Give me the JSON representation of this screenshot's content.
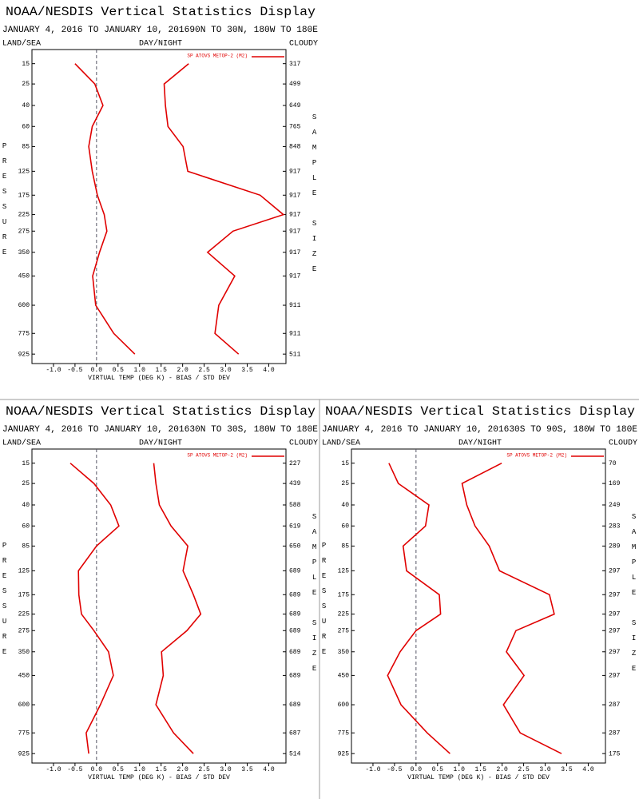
{
  "chart_data": [
    {
      "type": "line",
      "title": "NOAA/NESDIS Vertical Statistics Display",
      "subtitle": "JANUARY 4, 2016 TO JANUARY 10, 201690N TO 30N, 180W TO 180E",
      "top_labels": [
        "LAND/SEA",
        "DAY/NIGHT",
        "CLOUDY"
      ],
      "xlabel": "VIRTUAL TEMP (DEG K) - BIAS / STD DEV",
      "ylabel": "PRESSURE",
      "y2label": "SAMPLE SIZE",
      "xlim": [
        -1.5,
        4.4
      ],
      "xticks": [
        {
          "value": -1.0,
          "label": "-1.0"
        },
        {
          "value": -0.5,
          "label": "-0.5"
        },
        {
          "value": 0,
          "label": "0.0"
        },
        {
          "value": 0.5,
          "label": "0.5"
        },
        {
          "value": 1,
          "label": "1.0"
        },
        {
          "value": 1.5,
          "label": "1.5"
        },
        {
          "value": 2,
          "label": "2.0"
        },
        {
          "value": 2.5,
          "label": "2.5"
        },
        {
          "value": 3,
          "label": "3.0"
        },
        {
          "value": 3.5,
          "label": "3.5"
        },
        {
          "value": 4,
          "label": "4.0"
        }
      ],
      "ylim": [
        10,
        1000
      ],
      "y_inverted": true,
      "yscale": "power",
      "yscale_exponent": 0.286,
      "y": [
        15,
        25,
        40,
        60,
        85,
        125,
        175,
        225,
        275,
        350,
        450,
        600,
        775,
        925
      ],
      "yticks": [
        15,
        25,
        40,
        60,
        85,
        125,
        175,
        225,
        275,
        350,
        450,
        600,
        775,
        925
      ],
      "sample_sizes": [
        317,
        499,
        649,
        765,
        848,
        917,
        917,
        917,
        917,
        917,
        917,
        911,
        911,
        511
      ],
      "reference_line": 0,
      "series": [
        {
          "name": "SP ATOVS METOP-2 (M2)",
          "color": "#e00000",
          "values": [
            -0.5,
            -0.04,
            0.15,
            -0.1,
            -0.18,
            -0.1,
            0.02,
            0.18,
            0.24,
            0.07,
            -0.09,
            -0.02,
            0.4,
            0.89
          ]
        },
        {
          "color": "#e00000",
          "values": [
            2.14,
            1.57,
            1.6,
            1.66,
            2.01,
            2.12,
            3.8,
            4.34,
            3.17,
            2.58,
            3.21,
            2.84,
            2.75,
            3.3
          ]
        }
      ]
    },
    {
      "type": "line",
      "title": "NOAA/NESDIS Vertical Statistics Display",
      "subtitle": "JANUARY 4, 2016 TO JANUARY 10, 201630N TO 30S, 180W TO 180E",
      "top_labels": [
        "LAND/SEA",
        "DAY/NIGHT",
        "CLOUDY"
      ],
      "xlabel": "VIRTUAL TEMP (DEG K) - BIAS / STD DEV",
      "ylabel": "PRESSURE",
      "y2label": "SAMPLE SIZE",
      "xlim": [
        -1.5,
        4.4
      ],
      "xticks": [
        {
          "value": -1.0,
          "label": "-1.0"
        },
        {
          "value": -0.5,
          "label": "-0.5"
        },
        {
          "value": 0,
          "label": "0.0"
        },
        {
          "value": 0.5,
          "label": "0.5"
        },
        {
          "value": 1,
          "label": "1.0"
        },
        {
          "value": 1.5,
          "label": "1.5"
        },
        {
          "value": 2,
          "label": "2.0"
        },
        {
          "value": 2.5,
          "label": "2.5"
        },
        {
          "value": 3,
          "label": "3.0"
        },
        {
          "value": 3.5,
          "label": "3.5"
        },
        {
          "value": 4,
          "label": "4.0"
        }
      ],
      "ylim": [
        10,
        1000
      ],
      "y_inverted": true,
      "yscale": "power",
      "yscale_exponent": 0.286,
      "y": [
        15,
        25,
        40,
        60,
        85,
        125,
        175,
        225,
        275,
        350,
        450,
        600,
        775,
        925
      ],
      "yticks": [
        15,
        25,
        40,
        60,
        85,
        125,
        175,
        225,
        275,
        350,
        450,
        600,
        775,
        925
      ],
      "sample_sizes": [
        227,
        439,
        588,
        619,
        650,
        689,
        689,
        689,
        689,
        689,
        689,
        689,
        687,
        514
      ],
      "reference_line": 0,
      "series": [
        {
          "name": "SP ATOVS METOP-2 (M2)",
          "color": "#e00000",
          "values": [
            -0.61,
            -0.06,
            0.33,
            0.52,
            0.0,
            -0.42,
            -0.41,
            -0.35,
            -0.06,
            0.28,
            0.39,
            0.09,
            -0.24,
            -0.18
          ]
        },
        {
          "color": "#e00000",
          "values": [
            1.33,
            1.38,
            1.46,
            1.73,
            2.12,
            2.01,
            2.25,
            2.42,
            2.1,
            1.51,
            1.55,
            1.38,
            1.79,
            2.25
          ]
        }
      ]
    },
    {
      "type": "line",
      "title": "NOAA/NESDIS Vertical Statistics Display",
      "subtitle": "JANUARY 4, 2016 TO JANUARY 10, 201630S TO 90S, 180W TO 180E",
      "top_labels": [
        "LAND/SEA",
        "DAY/NIGHT",
        "CLOUDY"
      ],
      "xlabel": "VIRTUAL TEMP (DEG K) - BIAS / STD DEV",
      "ylabel": "PRESSURE",
      "y2label": "SAMPLE SIZE",
      "xlim": [
        -1.5,
        4.4
      ],
      "xticks": [
        {
          "value": -1.0,
          "label": "-1.0"
        },
        {
          "value": -0.5,
          "label": "-0.5"
        },
        {
          "value": 0,
          "label": "0.0"
        },
        {
          "value": 0.5,
          "label": "0.5"
        },
        {
          "value": 1,
          "label": "1.0"
        },
        {
          "value": 1.5,
          "label": "1.5"
        },
        {
          "value": 2,
          "label": "2.0"
        },
        {
          "value": 2.5,
          "label": "2.5"
        },
        {
          "value": 3,
          "label": "3.0"
        },
        {
          "value": 3.5,
          "label": "3.5"
        },
        {
          "value": 4,
          "label": "4.0"
        }
      ],
      "ylim": [
        10,
        1000
      ],
      "y_inverted": true,
      "yscale": "power",
      "yscale_exponent": 0.286,
      "y": [
        15,
        25,
        40,
        60,
        85,
        125,
        175,
        225,
        275,
        350,
        450,
        600,
        775,
        925
      ],
      "yticks": [
        15,
        25,
        40,
        60,
        85,
        125,
        175,
        225,
        275,
        350,
        450,
        600,
        775,
        925
      ],
      "sample_sizes": [
        70,
        169,
        249,
        283,
        289,
        297,
        297,
        297,
        297,
        297,
        297,
        287,
        287,
        175
      ],
      "reference_line": 0,
      "series": [
        {
          "name": "SP ATOVS METOP-2 (M2)",
          "color": "#e00000",
          "values": [
            -0.63,
            -0.41,
            0.3,
            0.22,
            -0.3,
            -0.22,
            0.54,
            0.57,
            0.0,
            -0.37,
            -0.66,
            -0.35,
            0.26,
            0.79
          ]
        },
        {
          "color": "#e00000",
          "values": [
            1.99,
            1.07,
            1.18,
            1.37,
            1.7,
            1.94,
            3.1,
            3.21,
            2.32,
            2.1,
            2.51,
            2.03,
            2.42,
            3.38
          ]
        }
      ]
    }
  ]
}
